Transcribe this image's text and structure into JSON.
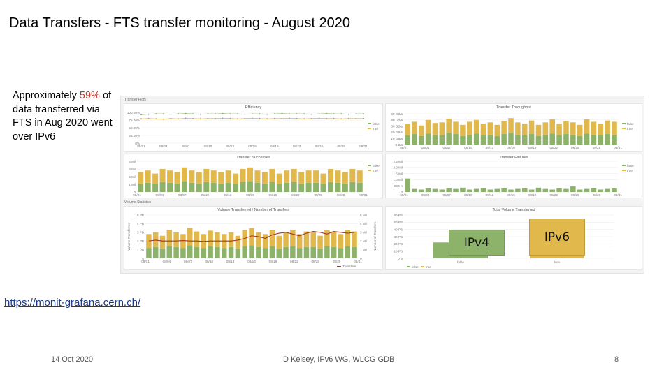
{
  "slide": {
    "title": "Data Transfers - FTS transfer monitoring - August 2020",
    "summary_before": "Approximately ",
    "summary_highlight": "59%",
    "summary_after": " of data transferred via FTS in Aug 2020 went over IPv6",
    "link": "https://monit-grafana.cern.ch/",
    "footer_date": "14 Oct 2020",
    "footer_author": "D Kelsey, IPv6 WG, WLCG GDB",
    "page_number": "8"
  },
  "dashboard": {
    "row_transfer_plots": "Transfer Plots",
    "row_volume_statistics": "Volume Statistics",
    "colors": {
      "ipv4": "#8cb369",
      "ipv6": "#e0b84c",
      "line": "#a63a2a"
    },
    "date_ticks": [
      "08/01",
      "08/04",
      "08/07",
      "08/10",
      "08/13",
      "08/16",
      "08/19",
      "08/22",
      "08/25",
      "08/28",
      "08/31"
    ],
    "panels": {
      "efficiency": {
        "title": "Efficiency",
        "yticks": [
          "100.00%",
          "75.00%",
          "50.00%",
          "25.00%",
          "0%"
        ],
        "legend": [
          "false",
          "true"
        ],
        "chart_data": {
          "type": "line",
          "series": [
            {
              "name": "false",
              "values": [
                0.93,
                0.94,
                0.95,
                0.95,
                0.94,
                0.95,
                0.96,
                0.95,
                0.94,
                0.95,
                0.95,
                0.96,
                0.95,
                0.95,
                0.94,
                0.95,
                0.95,
                0.94,
                0.95,
                0.96,
                0.95,
                0.95,
                0.95,
                0.94,
                0.95,
                0.96,
                0.95,
                0.95,
                0.94,
                0.95,
                0.95
              ]
            },
            {
              "name": "true",
              "values": [
                0.79,
                0.8,
                0.79,
                0.78,
                0.8,
                0.79,
                0.81,
                0.8,
                0.79,
                0.8,
                0.8,
                0.81,
                0.8,
                0.79,
                0.8,
                0.81,
                0.8,
                0.79,
                0.8,
                0.8,
                0.81,
                0.8,
                0.79,
                0.8,
                0.81,
                0.8,
                0.8,
                0.79,
                0.8,
                0.8,
                0.8
              ]
            }
          ],
          "ylim": [
            0,
            1
          ]
        }
      },
      "throughput": {
        "title": "Transfer Throughput",
        "yticks": [
          "50 GB/s",
          "40 GB/s",
          "30 GB/s",
          "20 GB/s",
          "10 GB/s",
          "0 B/s"
        ],
        "legend": [
          "false",
          "true"
        ],
        "chart_data": {
          "type": "bar",
          "series": [
            {
              "name": "false",
              "values": [
                15,
                17,
                14,
                18,
                16,
                15,
                19,
                17,
                14,
                16,
                18,
                15,
                16,
                14,
                17,
                19,
                16,
                15,
                17,
                14,
                16,
                18,
                15,
                17,
                16,
                14,
                18,
                16,
                15,
                17,
                16
              ]
            },
            {
              "name": "true",
              "values": [
                18,
                20,
                17,
                22,
                19,
                21,
                23,
                20,
                18,
                21,
                22,
                19,
                20,
                18,
                21,
                24,
                20,
                19,
                22,
                18,
                20,
                23,
                19,
                21,
                20,
                18,
                23,
                21,
                19,
                22,
                21
              ]
            }
          ],
          "ylim": [
            0,
            50
          ]
        }
      },
      "successes": {
        "title": "Transfer Successes",
        "yticks": [
          "4 Mil",
          "3 Mil",
          "2 Mil",
          "1 Mil",
          "0"
        ],
        "legend": [
          "false",
          "true"
        ],
        "chart_data": {
          "type": "bar",
          "series": [
            {
              "name": "false",
              "values": [
                1.1,
                1.2,
                1.0,
                1.3,
                1.2,
                1.1,
                1.4,
                1.2,
                1.1,
                1.3,
                1.2,
                1.1,
                1.2,
                1.0,
                1.3,
                1.4,
                1.2,
                1.1,
                1.3,
                1.0,
                1.2,
                1.3,
                1.1,
                1.2,
                1.2,
                1.0,
                1.3,
                1.2,
                1.1,
                1.3,
                1.2
              ]
            },
            {
              "name": "true",
              "values": [
                1.5,
                1.6,
                1.4,
                1.7,
                1.6,
                1.5,
                1.8,
                1.6,
                1.5,
                1.7,
                1.6,
                1.5,
                1.6,
                1.4,
                1.7,
                1.8,
                1.6,
                1.5,
                1.7,
                1.4,
                1.6,
                1.7,
                1.5,
                1.6,
                1.6,
                1.4,
                1.7,
                1.6,
                1.5,
                1.7,
                1.6
              ]
            }
          ],
          "ylim": [
            0,
            4
          ]
        }
      },
      "failures": {
        "title": "Transfer Failures",
        "yticks": [
          "2.5 Mil",
          "2.0 Mil",
          "1.5 Mil",
          "1.0 Mil",
          "500 K",
          "0"
        ],
        "legend": [
          "false",
          "true"
        ],
        "chart_data": {
          "type": "bar",
          "series": [
            {
              "name": "false",
              "values": [
                1.1,
                0.25,
                0.2,
                0.3,
                0.25,
                0.2,
                0.3,
                0.25,
                0.35,
                0.2,
                0.25,
                0.3,
                0.2,
                0.25,
                0.3,
                0.2,
                0.25,
                0.3,
                0.2,
                0.35,
                0.25,
                0.2,
                0.3,
                0.25,
                0.45,
                0.2,
                0.25,
                0.3,
                0.2,
                0.25,
                0.3
              ]
            },
            {
              "name": "true",
              "values": [
                0,
                0,
                0,
                0,
                0,
                0,
                0,
                0,
                0,
                0,
                0,
                0,
                0,
                0,
                0,
                0,
                0,
                0,
                0,
                0,
                0,
                0,
                0,
                0,
                0,
                0,
                0,
                0,
                0,
                0,
                0
              ]
            }
          ],
          "ylim": [
            0,
            2.5
          ]
        }
      },
      "volume": {
        "title": "Volume Transferred / Number of Transfers",
        "yticks_left": [
          "5 PB",
          "4 PB",
          "3 PB",
          "2 PB",
          "1 PB",
          "0"
        ],
        "yticks_right": [
          "5 Mil",
          "4 Mil",
          "3 Mil",
          "2 Mil",
          "1 Mil",
          "0"
        ],
        "ylabel_left": "Volume Transferred",
        "ylabel_right": "Number of Transfers",
        "legend": [
          "false",
          "true",
          "Transfers"
        ],
        "chart_data": {
          "type": "bar",
          "series": [
            {
              "name": "false",
              "values": [
                1.2,
                1.3,
                1.1,
                1.4,
                1.3,
                1.2,
                1.5,
                1.3,
                1.2,
                1.4,
                1.3,
                1.2,
                1.3,
                1.1,
                1.4,
                1.5,
                1.3,
                1.2,
                1.4,
                1.1,
                1.3,
                1.4,
                1.2,
                1.3,
                1.3,
                1.1,
                1.4,
                1.3,
                1.2,
                1.4,
                1.3
              ]
            },
            {
              "name": "true",
              "values": [
                1.6,
                1.7,
                1.5,
                1.9,
                1.7,
                1.6,
                2.0,
                1.8,
                1.6,
                1.8,
                1.7,
                1.6,
                1.7,
                1.5,
                1.9,
                2.0,
                1.7,
                1.6,
                1.9,
                1.5,
                1.7,
                1.9,
                1.6,
                1.8,
                1.7,
                1.5,
                1.9,
                1.8,
                1.6,
                1.9,
                1.8
              ]
            },
            {
              "name": "Transfers",
              "values": [
                2.0,
                2.1,
                2.0,
                2.0,
                2.0,
                2.05,
                2.0,
                2.0,
                1.95,
                2.0,
                2.0,
                2.0,
                2.0,
                2.1,
                2.3,
                2.6,
                2.5,
                2.3,
                2.7,
                2.9,
                3.0,
                2.8,
                2.6,
                2.9,
                3.1,
                3.0,
                2.8,
                3.1,
                3.0,
                2.9,
                3.0
              ]
            }
          ],
          "ylim": [
            0,
            5
          ]
        }
      },
      "total": {
        "title": "Total Volume Transferred",
        "yticks": [
          "60 PB",
          "50 PB",
          "40 PB",
          "30 PB",
          "20 PB",
          "10 PB",
          "0 B"
        ],
        "categories": [
          "false",
          "true"
        ],
        "legend": [
          "false",
          "true"
        ],
        "chart_data": {
          "type": "bar",
          "categories": [
            "false",
            "true"
          ],
          "values": [
            22,
            32
          ],
          "ylim": [
            0,
            60
          ]
        }
      }
    }
  },
  "overlay": {
    "ipv4_label": "IPv4",
    "ipv6_label": "IPv6"
  }
}
